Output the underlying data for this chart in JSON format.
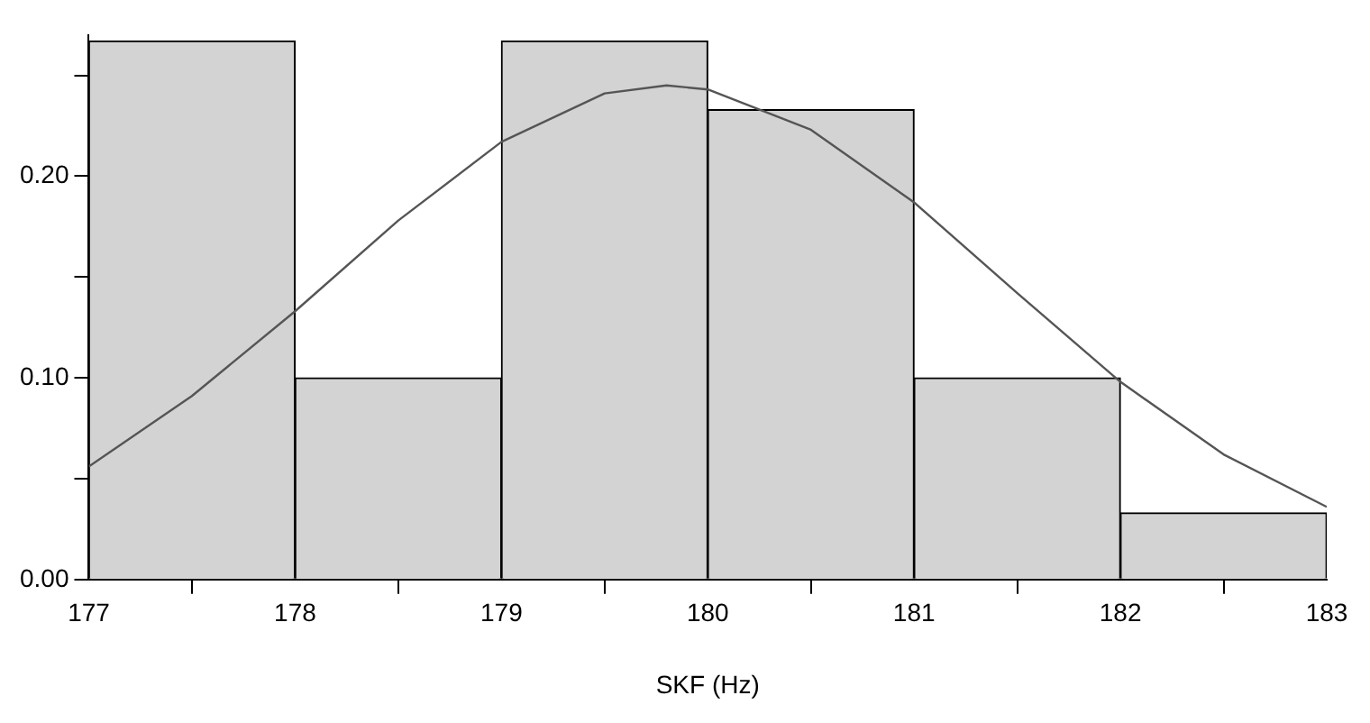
{
  "chart_data": {
    "type": "histogram",
    "xlabel": "SKF (Hz)",
    "bins": [
      177,
      178,
      179,
      180,
      181,
      182,
      183
    ],
    "xlim": [
      177,
      183
    ],
    "xticks": [
      177,
      178,
      179,
      180,
      181,
      182,
      183
    ],
    "ylim": [
      0,
      0.27
    ],
    "yticks": [
      {
        "value": 0,
        "label": "0.00"
      },
      {
        "value": 0.05,
        "label": null
      },
      {
        "value": 0.1,
        "label": "0.10"
      },
      {
        "value": 0.15,
        "label": null
      },
      {
        "value": 0.2,
        "label": "0.20"
      },
      {
        "value": 0.25,
        "label": null
      }
    ],
    "series": [
      {
        "color": "#d3d3d3",
        "values": [
          0.267,
          0.1,
          0.267,
          0.233,
          0.1,
          0.033
        ]
      },
      {
        "type": "line",
        "color": "#555555",
        "x": [
          177,
          177.5,
          178,
          178.5,
          179,
          179.5,
          179.8,
          180,
          180.5,
          181,
          181.5,
          182,
          182.5,
          183
        ],
        "values": [
          0.056,
          0.091,
          0.133,
          0.178,
          0.217,
          0.241,
          0.245,
          0.243,
          0.223,
          0.187,
          0.142,
          0.098,
          0.062,
          0.036
        ]
      }
    ],
    "grid": false,
    "legend": false,
    "marker": "none"
  }
}
